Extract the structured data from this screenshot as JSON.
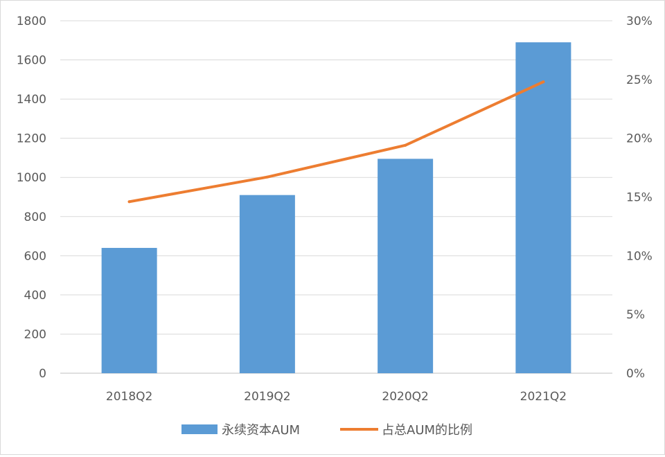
{
  "chart_data": {
    "type": "bar",
    "categories": [
      "2018Q2",
      "2019Q2",
      "2020Q2",
      "2021Q2"
    ],
    "series": [
      {
        "name": "永续资本AUM",
        "type": "bar",
        "axis": "left",
        "color": "#5b9bd5",
        "values": [
          640,
          910,
          1095,
          1690
        ]
      },
      {
        "name": "占总AUM的比例",
        "type": "line",
        "axis": "right",
        "color": "#ed7d31",
        "values": [
          0.146,
          0.167,
          0.194,
          0.248
        ]
      }
    ],
    "ylim": [
      0,
      1800
    ],
    "y_ticks": [
      "0",
      "200",
      "400",
      "600",
      "800",
      "1000",
      "1200",
      "1400",
      "1600",
      "1800"
    ],
    "y2lim": [
      0,
      0.3
    ],
    "y2_ticks": [
      "0%",
      "5%",
      "10%",
      "15%",
      "20%",
      "25%",
      "30%"
    ],
    "grid": true,
    "legend_position": "bottom"
  }
}
